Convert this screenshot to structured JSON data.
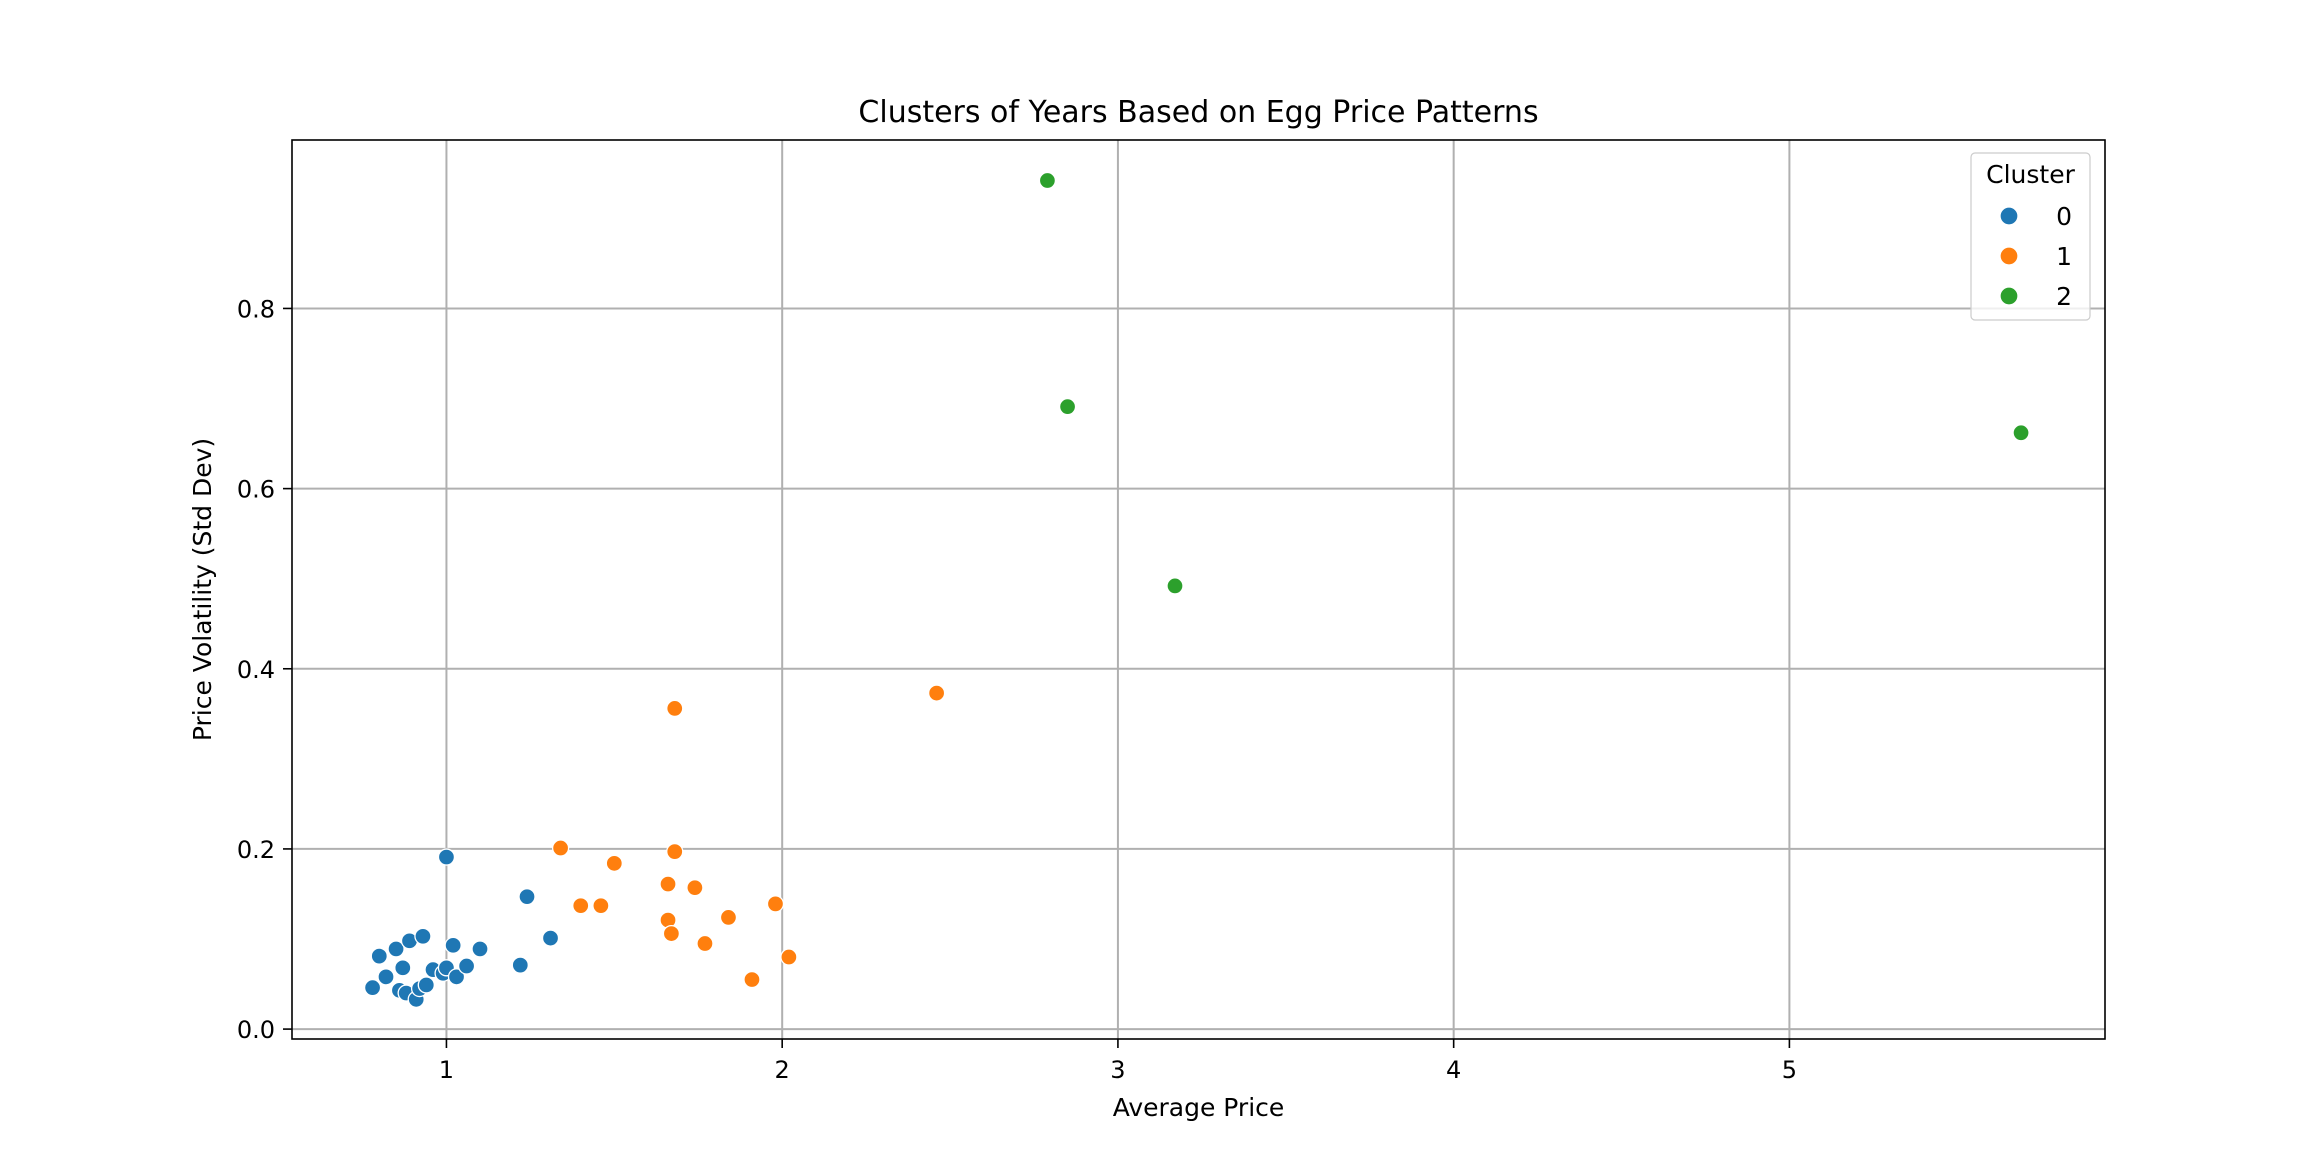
{
  "chart_data": {
    "type": "scatter",
    "title": "Clusters of Years Based on Egg Price Patterns",
    "xlabel": "Average Price",
    "ylabel": "Price Volatility (Std Dev)",
    "xlim": [
      0.54,
      5.94
    ],
    "ylim": [
      -0.011,
      0.987
    ],
    "xticks": [
      1,
      2,
      3,
      4,
      5
    ],
    "xtick_labels": [
      "1",
      "2",
      "3",
      "4",
      "5"
    ],
    "yticks": [
      0.0,
      0.2,
      0.4,
      0.6,
      0.8
    ],
    "ytick_labels": [
      "0.0",
      "0.2",
      "0.4",
      "0.6",
      "0.8"
    ],
    "grid": true,
    "legend": {
      "title": "Cluster",
      "placement": "top-right"
    },
    "series": [
      {
        "name": "0",
        "color": "#1f77b4",
        "points": [
          {
            "x": 0.78,
            "y": 0.046
          },
          {
            "x": 0.8,
            "y": 0.081
          },
          {
            "x": 0.82,
            "y": 0.058
          },
          {
            "x": 0.85,
            "y": 0.089
          },
          {
            "x": 0.86,
            "y": 0.043
          },
          {
            "x": 0.87,
            "y": 0.068
          },
          {
            "x": 0.88,
            "y": 0.04
          },
          {
            "x": 0.89,
            "y": 0.098
          },
          {
            "x": 0.91,
            "y": 0.033
          },
          {
            "x": 0.92,
            "y": 0.045
          },
          {
            "x": 0.93,
            "y": 0.103
          },
          {
            "x": 0.94,
            "y": 0.049
          },
          {
            "x": 0.96,
            "y": 0.066
          },
          {
            "x": 0.99,
            "y": 0.062
          },
          {
            "x": 1.0,
            "y": 0.068
          },
          {
            "x": 1.0,
            "y": 0.191
          },
          {
            "x": 1.02,
            "y": 0.093
          },
          {
            "x": 1.03,
            "y": 0.058
          },
          {
            "x": 1.06,
            "y": 0.07
          },
          {
            "x": 1.1,
            "y": 0.089
          },
          {
            "x": 1.22,
            "y": 0.071
          },
          {
            "x": 1.24,
            "y": 0.147
          },
          {
            "x": 1.31,
            "y": 0.101
          }
        ]
      },
      {
        "name": "1",
        "color": "#ff7f0e",
        "points": [
          {
            "x": 1.34,
            "y": 0.201
          },
          {
            "x": 1.4,
            "y": 0.137
          },
          {
            "x": 1.46,
            "y": 0.137
          },
          {
            "x": 1.5,
            "y": 0.184
          },
          {
            "x": 1.66,
            "y": 0.161
          },
          {
            "x": 1.66,
            "y": 0.121
          },
          {
            "x": 1.67,
            "y": 0.106
          },
          {
            "x": 1.68,
            "y": 0.197
          },
          {
            "x": 1.68,
            "y": 0.356
          },
          {
            "x": 1.74,
            "y": 0.157
          },
          {
            "x": 1.77,
            "y": 0.095
          },
          {
            "x": 1.84,
            "y": 0.124
          },
          {
            "x": 1.91,
            "y": 0.055
          },
          {
            "x": 1.98,
            "y": 0.139
          },
          {
            "x": 2.02,
            "y": 0.08
          },
          {
            "x": 2.46,
            "y": 0.373
          }
        ]
      },
      {
        "name": "2",
        "color": "#2ca02c",
        "points": [
          {
            "x": 2.79,
            "y": 0.942
          },
          {
            "x": 2.85,
            "y": 0.691
          },
          {
            "x": 3.17,
            "y": 0.492
          },
          {
            "x": 5.69,
            "y": 0.662
          }
        ]
      }
    ]
  }
}
